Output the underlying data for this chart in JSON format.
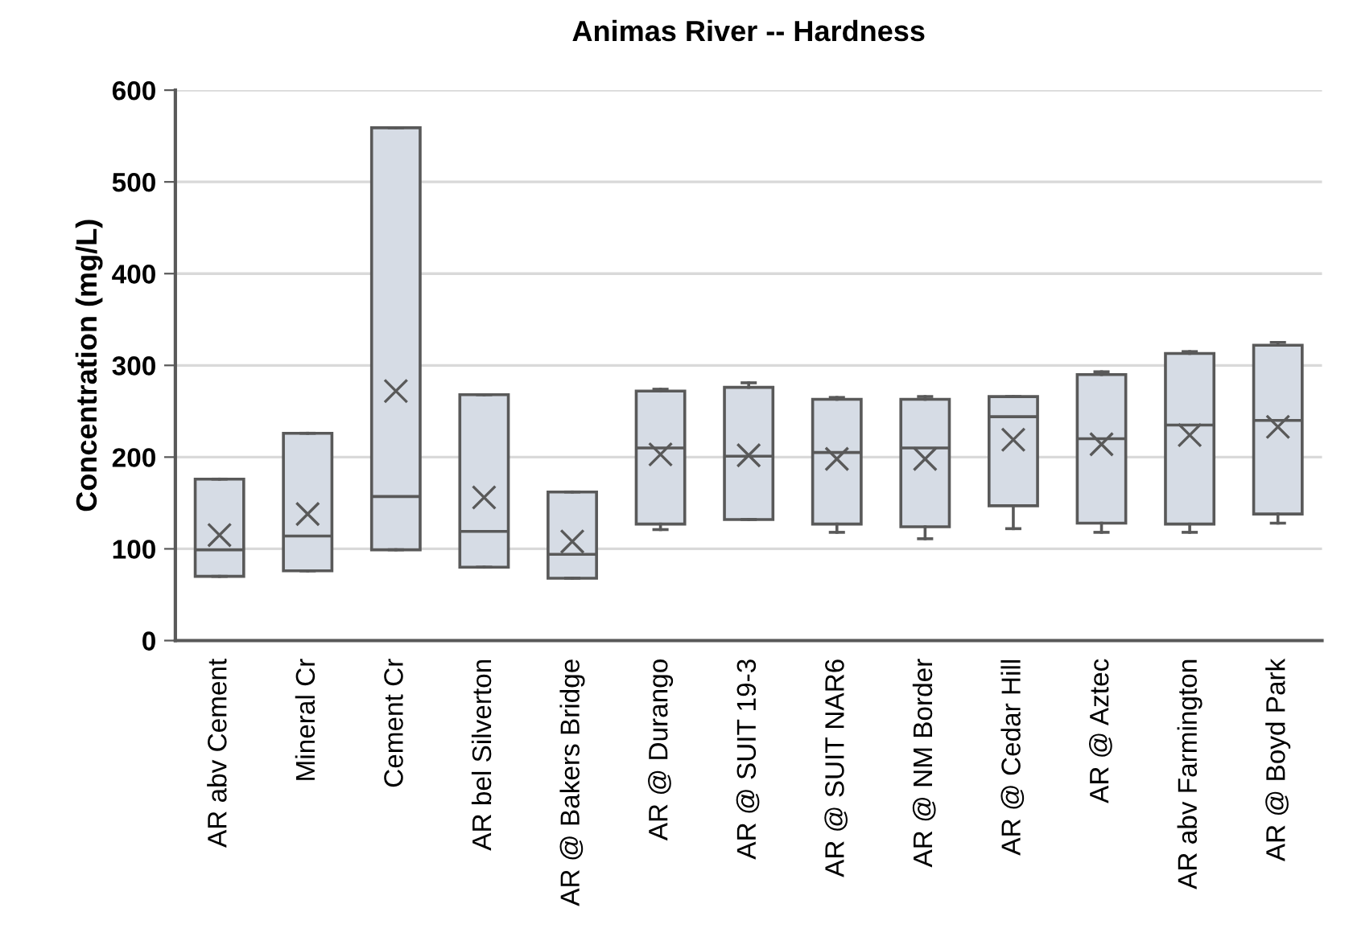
{
  "chart_data": {
    "type": "box",
    "title": "Animas River -- Hardness",
    "ylabel": "Concentration (mg/L)",
    "categories": [
      "AR abv Cement",
      "Mineral Cr",
      "Cement Cr",
      "AR bel Silverton",
      "AR @ Bakers Bridge",
      "AR @ Durango",
      "AR @ SUIT 19-3",
      "AR @ SUIT NAR6",
      "AR @ NM Border",
      "AR @ Cedar Hill",
      "AR @ Aztec",
      "AR abv Farmington",
      "AR @ Boyd Park"
    ],
    "boxes": [
      {
        "low": 70,
        "q1": 70,
        "median": 99,
        "q3": 176,
        "high": 176,
        "mean": 115
      },
      {
        "low": 76,
        "q1": 76,
        "median": 114,
        "q3": 226,
        "high": 226,
        "mean": 138
      },
      {
        "low": 99,
        "q1": 99,
        "median": 157,
        "q3": 559,
        "high": 559,
        "mean": 272
      },
      {
        "low": 80,
        "q1": 80,
        "median": 119,
        "q3": 268,
        "high": 268,
        "mean": 156
      },
      {
        "low": 68,
        "q1": 68,
        "median": 94,
        "q3": 162,
        "high": 162,
        "mean": 108
      },
      {
        "low": 121,
        "q1": 127,
        "median": 210,
        "q3": 272,
        "high": 274,
        "mean": 203
      },
      {
        "low": 132,
        "q1": 132,
        "median": 201,
        "q3": 276,
        "high": 281,
        "mean": 202
      },
      {
        "low": 118,
        "q1": 127,
        "median": 205,
        "q3": 263,
        "high": 265,
        "mean": 198
      },
      {
        "low": 111,
        "q1": 124,
        "median": 210,
        "q3": 263,
        "high": 266,
        "mean": 198
      },
      {
        "low": 122,
        "q1": 147,
        "median": 244,
        "q3": 266,
        "high": 266,
        "mean": 219
      },
      {
        "low": 118,
        "q1": 128,
        "median": 220,
        "q3": 290,
        "high": 293,
        "mean": 214
      },
      {
        "low": 118,
        "q1": 127,
        "median": 235,
        "q3": 313,
        "high": 315,
        "mean": 224
      },
      {
        "low": 128,
        "q1": 138,
        "median": 240,
        "q3": 322,
        "high": 325,
        "mean": 233
      }
    ],
    "color": "#d6dce5",
    "ylim": [
      0,
      600
    ],
    "yticks": [
      0,
      100,
      200,
      300,
      400,
      500,
      600
    ],
    "grid": "y",
    "marker": "cross",
    "legend": false
  }
}
